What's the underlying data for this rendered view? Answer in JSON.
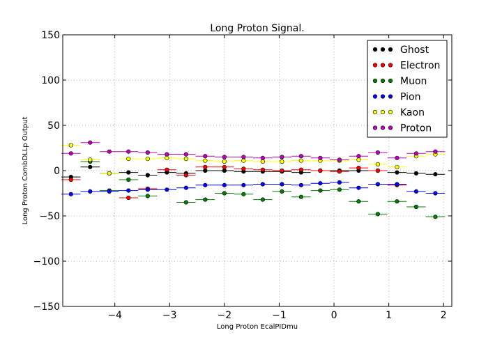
{
  "chart_data": {
    "type": "scatter",
    "title": "Long Proton Signal.",
    "xlabel": "Long Proton EcalPIDmu",
    "ylabel": "Long Proton CombDLLp Output",
    "xlim": [
      -4.95,
      2.15
    ],
    "ylim": [
      -150,
      150
    ],
    "xticks": [
      -4,
      -3,
      -2,
      -1,
      0,
      1,
      2
    ],
    "xtick_labels": [
      "−4",
      "−3",
      "−2",
      "−1",
      "0",
      "1",
      "2"
    ],
    "yticks": [
      -150,
      -100,
      -50,
      0,
      50,
      100,
      150
    ],
    "ytick_labels": [
      "−150",
      "−100",
      "−50",
      "0",
      "50",
      "100",
      "150"
    ],
    "grid": true,
    "legend_position": "top-right",
    "bin_half_width": 0.175,
    "x": [
      -4.8,
      -4.45,
      -4.1,
      -3.75,
      -3.4,
      -3.05,
      -2.7,
      -2.35,
      -2.0,
      -1.65,
      -1.3,
      -0.95,
      -0.6,
      -0.25,
      0.1,
      0.45,
      0.8,
      1.15,
      1.5,
      1.85
    ],
    "series": [
      {
        "name": "Ghost",
        "color": "#000000",
        "values": [
          -7,
          4,
          -3,
          -2,
          -5,
          -2,
          -3,
          0,
          0,
          -1,
          -1,
          -1,
          -2,
          0,
          0,
          0,
          0,
          -2,
          -3,
          -4
        ]
      },
      {
        "name": "Electron",
        "color": "#ff0000",
        "values": [
          -10,
          10,
          null,
          -30,
          -20,
          1,
          -5,
          4,
          4,
          2,
          1,
          0,
          1,
          0,
          -1,
          3,
          0,
          -16,
          null,
          null
        ]
      },
      {
        "name": "Muon",
        "color": "#008000",
        "values": [
          null,
          10,
          -22,
          -10,
          -28,
          null,
          -35,
          -32,
          -25,
          -26,
          -32,
          -23,
          -29,
          -22,
          -21,
          -34,
          -48,
          -34,
          -40,
          -51
        ]
      },
      {
        "name": "Pion",
        "color": "#0000ff",
        "values": [
          -26,
          -23,
          -23,
          -22,
          -21,
          -21,
          -19,
          -16,
          -16,
          -16,
          -15,
          -15,
          -16,
          -14,
          -13,
          -19,
          -15,
          -15,
          -23,
          -25
        ]
      },
      {
        "name": "Kaon",
        "color": "#ffff00",
        "values": [
          28,
          12,
          -3,
          13,
          13,
          14,
          13,
          11,
          10,
          11,
          10,
          10,
          11,
          11,
          11,
          12,
          7,
          4,
          16,
          18
        ]
      },
      {
        "name": "Proton",
        "color": "#bf00bf",
        "values": [
          19,
          31,
          21,
          21,
          20,
          18,
          18,
          16,
          15,
          15,
          14,
          15,
          16,
          14,
          12,
          16,
          20,
          14,
          19,
          21
        ]
      }
    ]
  }
}
